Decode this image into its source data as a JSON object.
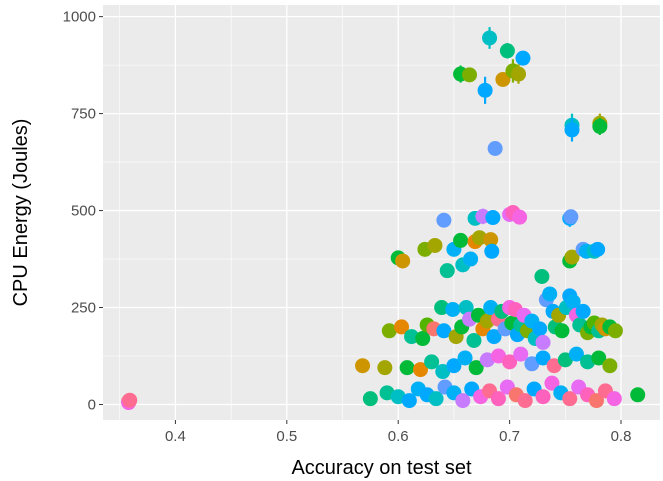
{
  "chart_data": {
    "type": "scatter",
    "title": "",
    "xlabel": "Accuracy on test set",
    "ylabel": "CPU Energy (Joules)",
    "xlim": [
      0.335,
      0.835
    ],
    "ylim": [
      -40,
      1030
    ],
    "x_ticks": [
      0.4,
      0.5,
      0.6,
      0.7,
      0.8
    ],
    "x_tick_labels": [
      "0.4",
      "0.5",
      "0.6",
      "0.7",
      "0.8"
    ],
    "y_ticks": [
      0,
      250,
      500,
      750,
      1000
    ],
    "y_tick_labels": [
      "0",
      "250",
      "500",
      "750",
      "1000"
    ],
    "grid": true,
    "panel_background": "#ebebeb",
    "legend": "none",
    "points": [
      {
        "x": 0.358,
        "y": 8,
        "color": "#f8766d"
      },
      {
        "x": 0.358,
        "y": 5,
        "color": "#f564e3"
      },
      {
        "x": 0.359,
        "y": 11,
        "color": "#ff6c91"
      },
      {
        "x": 0.682,
        "y": 945,
        "color": "#00bfc4",
        "err": 28
      },
      {
        "x": 0.698,
        "y": 912,
        "color": "#00bf7d",
        "err": 20
      },
      {
        "x": 0.712,
        "y": 893,
        "color": "#00a9ff",
        "err": 18
      },
      {
        "x": 0.656,
        "y": 852,
        "color": "#00ba38",
        "err": 22
      },
      {
        "x": 0.664,
        "y": 850,
        "color": "#7cae00"
      },
      {
        "x": 0.694,
        "y": 838,
        "color": "#cd9600"
      },
      {
        "x": 0.703,
        "y": 860,
        "color": "#7cae00",
        "err": 30
      },
      {
        "x": 0.708,
        "y": 852,
        "color": "#a3a500",
        "err": 25
      },
      {
        "x": 0.678,
        "y": 810,
        "color": "#00a9ff",
        "err": 35
      },
      {
        "x": 0.756,
        "y": 720,
        "color": "#00bfc4",
        "err": 30
      },
      {
        "x": 0.756,
        "y": 708,
        "color": "#00a9ff",
        "err": 30
      },
      {
        "x": 0.781,
        "y": 725,
        "color": "#a3a500",
        "err": 25
      },
      {
        "x": 0.781,
        "y": 717,
        "color": "#00ba38",
        "err": 22
      },
      {
        "x": 0.687,
        "y": 660,
        "color": "#619cff"
      },
      {
        "x": 0.641,
        "y": 475,
        "color": "#619cff"
      },
      {
        "x": 0.669,
        "y": 480,
        "color": "#00bfc4"
      },
      {
        "x": 0.676,
        "y": 485,
        "color": "#c77cff",
        "err": 20
      },
      {
        "x": 0.685,
        "y": 482,
        "color": "#00a9ff"
      },
      {
        "x": 0.7,
        "y": 490,
        "color": "#e76bf3"
      },
      {
        "x": 0.703,
        "y": 495,
        "color": "#ff62bc"
      },
      {
        "x": 0.709,
        "y": 483,
        "color": "#f564e3"
      },
      {
        "x": 0.754,
        "y": 480,
        "color": "#00a9ff",
        "err": 22
      },
      {
        "x": 0.755,
        "y": 484,
        "color": "#619cff"
      },
      {
        "x": 0.6,
        "y": 378,
        "color": "#00ba38"
      },
      {
        "x": 0.604,
        "y": 370,
        "color": "#cd9600"
      },
      {
        "x": 0.624,
        "y": 400,
        "color": "#7cae00"
      },
      {
        "x": 0.633,
        "y": 410,
        "color": "#a3a500"
      },
      {
        "x": 0.644,
        "y": 345,
        "color": "#00c094"
      },
      {
        "x": 0.65,
        "y": 400,
        "color": "#00b0f6"
      },
      {
        "x": 0.656,
        "y": 423,
        "color": "#00ba38"
      },
      {
        "x": 0.658,
        "y": 360,
        "color": "#00bfc4"
      },
      {
        "x": 0.665,
        "y": 375,
        "color": "#00b0f6"
      },
      {
        "x": 0.669,
        "y": 420,
        "color": "#e58700"
      },
      {
        "x": 0.673,
        "y": 430,
        "color": "#a3a500"
      },
      {
        "x": 0.683,
        "y": 425,
        "color": "#cd9600"
      },
      {
        "x": 0.684,
        "y": 395,
        "color": "#00a9ff"
      },
      {
        "x": 0.729,
        "y": 330,
        "color": "#00bf7d"
      },
      {
        "x": 0.754,
        "y": 370,
        "color": "#00ba38"
      },
      {
        "x": 0.756,
        "y": 380,
        "color": "#a3a500"
      },
      {
        "x": 0.766,
        "y": 400,
        "color": "#619cff"
      },
      {
        "x": 0.769,
        "y": 395,
        "color": "#00b0f6"
      },
      {
        "x": 0.776,
        "y": 395,
        "color": "#00bfc4"
      },
      {
        "x": 0.779,
        "y": 400,
        "color": "#00a9ff"
      },
      {
        "x": 0.592,
        "y": 190,
        "color": "#7cae00"
      },
      {
        "x": 0.603,
        "y": 200,
        "color": "#e58700"
      },
      {
        "x": 0.612,
        "y": 175,
        "color": "#00c094"
      },
      {
        "x": 0.622,
        "y": 170,
        "color": "#00ba38"
      },
      {
        "x": 0.626,
        "y": 205,
        "color": "#53b400"
      },
      {
        "x": 0.632,
        "y": 195,
        "color": "#f8766d"
      },
      {
        "x": 0.639,
        "y": 250,
        "color": "#00bf7d"
      },
      {
        "x": 0.641,
        "y": 190,
        "color": "#00a9ff"
      },
      {
        "x": 0.649,
        "y": 245,
        "color": "#00b0f6"
      },
      {
        "x": 0.652,
        "y": 175,
        "color": "#a3a500"
      },
      {
        "x": 0.657,
        "y": 200,
        "color": "#00ba38"
      },
      {
        "x": 0.661,
        "y": 250,
        "color": "#00bfc4"
      },
      {
        "x": 0.664,
        "y": 220,
        "color": "#c77cff"
      },
      {
        "x": 0.668,
        "y": 165,
        "color": "#00c094"
      },
      {
        "x": 0.672,
        "y": 230,
        "color": "#00ba38"
      },
      {
        "x": 0.676,
        "y": 195,
        "color": "#e58700"
      },
      {
        "x": 0.68,
        "y": 215,
        "color": "#a3a500"
      },
      {
        "x": 0.683,
        "y": 250,
        "color": "#00b0f6"
      },
      {
        "x": 0.686,
        "y": 175,
        "color": "#00a9ff"
      },
      {
        "x": 0.69,
        "y": 220,
        "color": "#ff6c91"
      },
      {
        "x": 0.693,
        "y": 240,
        "color": "#00bf7d"
      },
      {
        "x": 0.696,
        "y": 195,
        "color": "#619cff"
      },
      {
        "x": 0.7,
        "y": 250,
        "color": "#f564e3"
      },
      {
        "x": 0.702,
        "y": 210,
        "color": "#00ba38"
      },
      {
        "x": 0.705,
        "y": 245,
        "color": "#ff62bc"
      },
      {
        "x": 0.707,
        "y": 180,
        "color": "#00a9ff"
      },
      {
        "x": 0.71,
        "y": 205,
        "color": "#00c094"
      },
      {
        "x": 0.713,
        "y": 230,
        "color": "#e76bf3"
      },
      {
        "x": 0.716,
        "y": 190,
        "color": "#7cae00"
      },
      {
        "x": 0.72,
        "y": 215,
        "color": "#00b0f6"
      },
      {
        "x": 0.723,
        "y": 170,
        "color": "#00bfc4"
      },
      {
        "x": 0.727,
        "y": 195,
        "color": "#00a9ff"
      },
      {
        "x": 0.73,
        "y": 160,
        "color": "#c77cff"
      },
      {
        "x": 0.733,
        "y": 270,
        "color": "#619cff"
      },
      {
        "x": 0.736,
        "y": 285,
        "color": "#00b0f6"
      },
      {
        "x": 0.739,
        "y": 240,
        "color": "#00a9ff"
      },
      {
        "x": 0.741,
        "y": 200,
        "color": "#00bf7d"
      },
      {
        "x": 0.744,
        "y": 230,
        "color": "#a3a500"
      },
      {
        "x": 0.747,
        "y": 190,
        "color": "#00ba38"
      },
      {
        "x": 0.751,
        "y": 250,
        "color": "#00bfc4"
      },
      {
        "x": 0.754,
        "y": 280,
        "color": "#00a9ff"
      },
      {
        "x": 0.757,
        "y": 265,
        "color": "#00b0f6"
      },
      {
        "x": 0.76,
        "y": 230,
        "color": "#f564e3"
      },
      {
        "x": 0.763,
        "y": 205,
        "color": "#00c094"
      },
      {
        "x": 0.766,
        "y": 240,
        "color": "#00a9ff"
      },
      {
        "x": 0.77,
        "y": 185,
        "color": "#7cae00"
      },
      {
        "x": 0.773,
        "y": 200,
        "color": "#00ba38"
      },
      {
        "x": 0.776,
        "y": 210,
        "color": "#53b400"
      },
      {
        "x": 0.78,
        "y": 190,
        "color": "#00c094"
      },
      {
        "x": 0.783,
        "y": 205,
        "color": "#a3a500"
      },
      {
        "x": 0.786,
        "y": 195,
        "color": "#cd9600"
      },
      {
        "x": 0.79,
        "y": 200,
        "color": "#00ba38"
      },
      {
        "x": 0.795,
        "y": 190,
        "color": "#7cae00"
      },
      {
        "x": 0.568,
        "y": 100,
        "color": "#cd9600"
      },
      {
        "x": 0.588,
        "y": 95,
        "color": "#a3a500"
      },
      {
        "x": 0.608,
        "y": 95,
        "color": "#00ba38"
      },
      {
        "x": 0.62,
        "y": 90,
        "color": "#e58700"
      },
      {
        "x": 0.63,
        "y": 110,
        "color": "#00c094"
      },
      {
        "x": 0.64,
        "y": 85,
        "color": "#00bfc4"
      },
      {
        "x": 0.65,
        "y": 100,
        "color": "#00a9ff"
      },
      {
        "x": 0.66,
        "y": 120,
        "color": "#00b0f6"
      },
      {
        "x": 0.67,
        "y": 95,
        "color": "#00ba38"
      },
      {
        "x": 0.68,
        "y": 115,
        "color": "#c77cff"
      },
      {
        "x": 0.69,
        "y": 125,
        "color": "#f564e3"
      },
      {
        "x": 0.7,
        "y": 110,
        "color": "#ff62bc"
      },
      {
        "x": 0.71,
        "y": 130,
        "color": "#e76bf3"
      },
      {
        "x": 0.72,
        "y": 105,
        "color": "#619cff"
      },
      {
        "x": 0.73,
        "y": 120,
        "color": "#00a9ff"
      },
      {
        "x": 0.74,
        "y": 100,
        "color": "#ff6c91"
      },
      {
        "x": 0.75,
        "y": 115,
        "color": "#00bf7d"
      },
      {
        "x": 0.76,
        "y": 130,
        "color": "#00b0f6"
      },
      {
        "x": 0.77,
        "y": 110,
        "color": "#00c094"
      },
      {
        "x": 0.78,
        "y": 120,
        "color": "#00ba38"
      },
      {
        "x": 0.79,
        "y": 100,
        "color": "#7cae00"
      },
      {
        "x": 0.575,
        "y": 15,
        "color": "#00bf7d"
      },
      {
        "x": 0.59,
        "y": 30,
        "color": "#00c094"
      },
      {
        "x": 0.6,
        "y": 20,
        "color": "#00bfc4"
      },
      {
        "x": 0.61,
        "y": 10,
        "color": "#00a9ff"
      },
      {
        "x": 0.618,
        "y": 40,
        "color": "#00b0f6"
      },
      {
        "x": 0.626,
        "y": 25,
        "color": "#00a9ff"
      },
      {
        "x": 0.634,
        "y": 15,
        "color": "#00bfc4"
      },
      {
        "x": 0.642,
        "y": 45,
        "color": "#619cff"
      },
      {
        "x": 0.65,
        "y": 30,
        "color": "#00b0f6"
      },
      {
        "x": 0.658,
        "y": 10,
        "color": "#c77cff"
      },
      {
        "x": 0.666,
        "y": 40,
        "color": "#00a9ff"
      },
      {
        "x": 0.674,
        "y": 20,
        "color": "#f564e3"
      },
      {
        "x": 0.682,
        "y": 35,
        "color": "#ff6c91"
      },
      {
        "x": 0.69,
        "y": 15,
        "color": "#ff62bc"
      },
      {
        "x": 0.698,
        "y": 45,
        "color": "#e76bf3"
      },
      {
        "x": 0.706,
        "y": 25,
        "color": "#f8766d"
      },
      {
        "x": 0.714,
        "y": 10,
        "color": "#ff6c91"
      },
      {
        "x": 0.722,
        "y": 40,
        "color": "#00a9ff"
      },
      {
        "x": 0.73,
        "y": 20,
        "color": "#ff62bc"
      },
      {
        "x": 0.738,
        "y": 55,
        "color": "#f564e3"
      },
      {
        "x": 0.746,
        "y": 30,
        "color": "#00b0f6"
      },
      {
        "x": 0.754,
        "y": 15,
        "color": "#ff6c91"
      },
      {
        "x": 0.762,
        "y": 45,
        "color": "#e76bf3"
      },
      {
        "x": 0.77,
        "y": 25,
        "color": "#ff62bc"
      },
      {
        "x": 0.778,
        "y": 10,
        "color": "#f8766d"
      },
      {
        "x": 0.786,
        "y": 35,
        "color": "#ff6c91"
      },
      {
        "x": 0.794,
        "y": 15,
        "color": "#f564e3"
      },
      {
        "x": 0.815,
        "y": 25,
        "color": "#00ba38"
      }
    ]
  }
}
